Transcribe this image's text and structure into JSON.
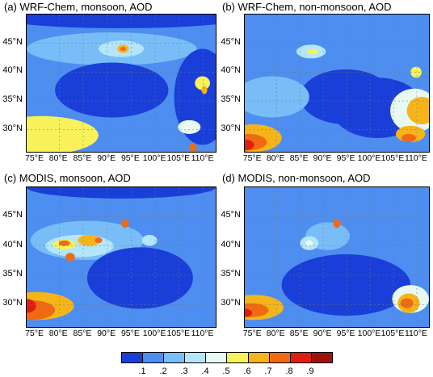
{
  "panels": [
    {
      "id": "a",
      "title": "(a) WRF-Chem, monsoon, AOD"
    },
    {
      "id": "b",
      "title": "(b) WRF-Chem, non-monsoon, AOD"
    },
    {
      "id": "c",
      "title": "(c) MODIS, monsoon, AOD"
    },
    {
      "id": "d",
      "title": "(d) MODIS, non-monsoon, AOD"
    }
  ],
  "lat_labels": [
    "45°N",
    "40°N",
    "35°N",
    "30°N"
  ],
  "lon_labels": [
    "75°E",
    "80°E",
    "85°E",
    "90°E",
    "95°E",
    "100°E",
    "105°E",
    "110°E"
  ],
  "colorbar": {
    "labels": [
      ".1",
      ".2",
      ".3",
      ".4",
      ".5",
      ".6",
      ".7",
      ".8",
      ".9"
    ],
    "colors": [
      "#1a3fd8",
      "#4d8ef0",
      "#78bdf7",
      "#b3e6fb",
      "#e8f8f2",
      "#f7f259",
      "#f5b51a",
      "#f06a14",
      "#e01d10",
      "#a0130d"
    ]
  }
}
